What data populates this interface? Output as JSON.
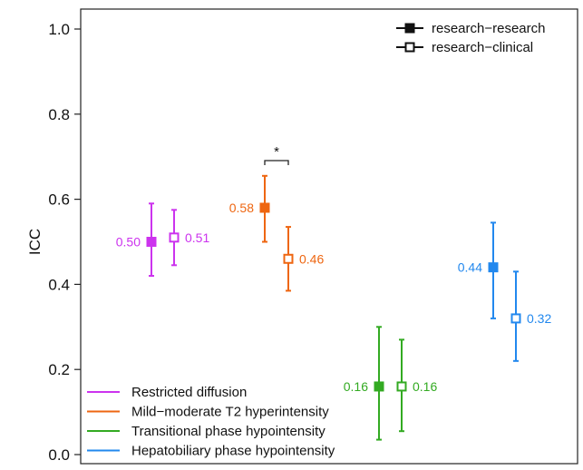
{
  "chart_data": {
    "type": "scatter",
    "title": "",
    "xlabel": "",
    "ylabel": "ICC",
    "ylim": [
      0,
      1.0
    ],
    "yticks": [
      "0.0",
      "0.2",
      "0.4",
      "0.6",
      "0.8",
      "1.0"
    ],
    "grid": false,
    "comparison_legend": {
      "placement": "top-right",
      "entries": [
        {
          "label": "research−research",
          "marker": "filled-square"
        },
        {
          "label": "research−clinical",
          "marker": "open-square"
        }
      ]
    },
    "feature_legend_placement": "bottom-left",
    "groups": [
      {
        "name": "Restricted diffusion",
        "color": "#cc33ee",
        "points": [
          {
            "series": "research−research",
            "value": 0.5,
            "low": 0.42,
            "high": 0.59,
            "label": "0.50"
          },
          {
            "series": "research−clinical",
            "value": 0.51,
            "low": 0.445,
            "high": 0.575,
            "label": "0.51"
          }
        ]
      },
      {
        "name": "Mild−moderate T2 hyperintensity",
        "color": "#ee6611",
        "points": [
          {
            "series": "research−research",
            "value": 0.58,
            "low": 0.5,
            "high": 0.655,
            "label": "0.58"
          },
          {
            "series": "research−clinical",
            "value": 0.46,
            "low": 0.385,
            "high": 0.535,
            "label": "0.46"
          }
        ],
        "significance": "*"
      },
      {
        "name": "Transitional phase hypointensity",
        "color": "#33aa22",
        "points": [
          {
            "series": "research−research",
            "value": 0.16,
            "low": 0.035,
            "high": 0.3,
            "label": "0.16"
          },
          {
            "series": "research−clinical",
            "value": 0.16,
            "low": 0.055,
            "high": 0.27,
            "label": "0.16"
          }
        ]
      },
      {
        "name": "Hepatobiliary phase hypointensity",
        "color": "#2288ee",
        "points": [
          {
            "series": "research−research",
            "value": 0.44,
            "low": 0.32,
            "high": 0.545,
            "label": "0.44"
          },
          {
            "series": "research−clinical",
            "value": 0.32,
            "low": 0.22,
            "high": 0.43,
            "label": "0.32"
          }
        ]
      }
    ]
  }
}
